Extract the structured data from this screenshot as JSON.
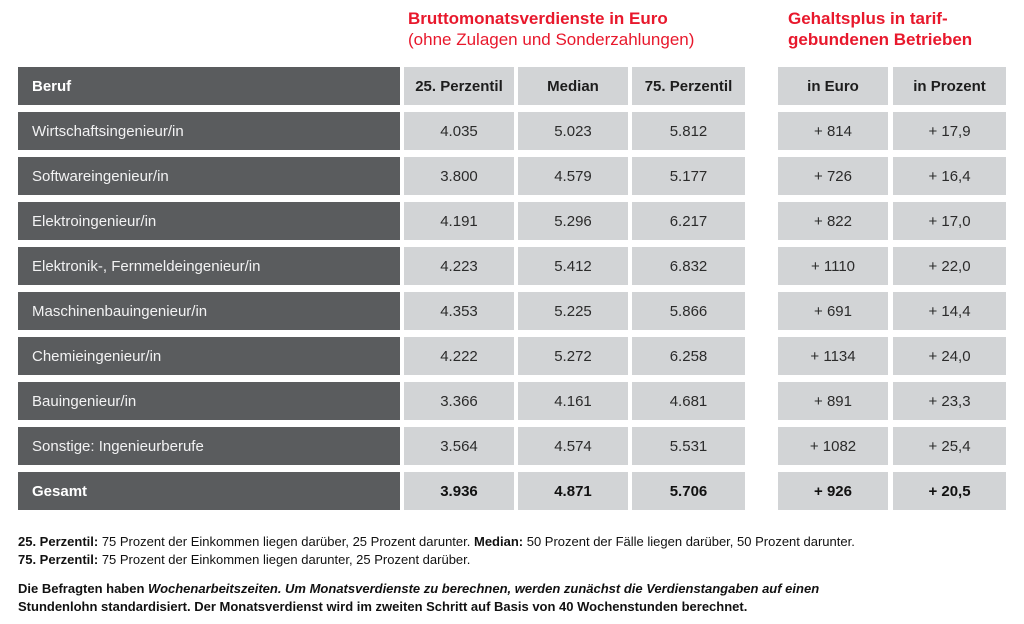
{
  "titles": {
    "earnings_line1": "Bruttomonatsverdienste in Euro",
    "earnings_line2": "(ohne Zulagen und Sonderzahlungen)",
    "bonus_line1": "Gehaltsplus in tarif-",
    "bonus_line2": "gebundenen Betrieben"
  },
  "table": {
    "beruf_header": "Beruf",
    "columns": [
      "25. Perzentil",
      "Median",
      "75. Perzentil",
      "in Euro",
      "in Prozent"
    ],
    "rows": [
      {
        "beruf": "Wirtschaftsingenieur/in",
        "p25": "4.035",
        "median": "5.023",
        "p75": "5.812",
        "euro": "+ 814",
        "prozent": "+ 17,9",
        "total": false
      },
      {
        "beruf": "Softwareingenieur/in",
        "p25": "3.800",
        "median": "4.579",
        "p75": "5.177",
        "euro": "+ 726",
        "prozent": "+ 16,4",
        "total": false
      },
      {
        "beruf": "Elektroingenieur/in",
        "p25": "4.191",
        "median": "5.296",
        "p75": "6.217",
        "euro": "+ 822",
        "prozent": "+ 17,0",
        "total": false
      },
      {
        "beruf": "Elektronik-, Fernmeldeingenieur/in",
        "p25": "4.223",
        "median": "5.412",
        "p75": "6.832",
        "euro": "+ 1110",
        "prozent": "+ 22,0",
        "total": false
      },
      {
        "beruf": "Maschinenbauingenieur/in",
        "p25": "4.353",
        "median": "5.225",
        "p75": "5.866",
        "euro": "+ 691",
        "prozent": "+ 14,4",
        "total": false
      },
      {
        "beruf": "Chemieingenieur/in",
        "p25": "4.222",
        "median": "5.272",
        "p75": "6.258",
        "euro": "+ 1134",
        "prozent": "+ 24,0",
        "total": false
      },
      {
        "beruf": "Bauingenieur/in",
        "p25": "3.366",
        "median": "4.161",
        "p75": "4.681",
        "euro": "+ 891",
        "prozent": "+ 23,3",
        "total": false
      },
      {
        "beruf": "Sonstige: Ingenieurberufe",
        "p25": "3.564",
        "median": "4.574",
        "p75": "5.531",
        "euro": "+ 1082",
        "prozent": "+ 25,4",
        "total": false
      },
      {
        "beruf": "Gesamt",
        "p25": "3.936",
        "median": "4.871",
        "p75": "5.706",
        "euro": "+ 926",
        "prozent": "+ 20,5",
        "total": true
      }
    ]
  },
  "footnotes": {
    "def1": [
      {
        "t": "25. Perzentil:",
        "b": true
      },
      {
        "t": " 75 Prozent der Einkommen liegen darüber, 25 Prozent darunter. ",
        "b": false
      },
      {
        "t": "Median:",
        "b": true
      },
      {
        "t": " 50 Prozent der Fälle liegen darüber, 50 Prozent darunter.",
        "b": false
      }
    ],
    "def2": [
      {
        "t": "75. Perzentil:",
        "b": true
      },
      {
        "t": " 75 Prozent der Einkommen liegen darunter, 25 Prozent darüber.",
        "b": false
      }
    ],
    "method": [
      {
        "t": "Die Befragten haben ",
        "b": true
      },
      {
        "t": "Wochenarbeitszeiten. Um Monatsverdienste zu berechnen, werden zunächst die Verdienstangaben auf einen",
        "b": true,
        "i": true,
        "br": true
      },
      {
        "t": "Stundenlohn standardisiert. Der Monatsverdienst wird im zweiten Schritt auf Basis von 40 Wochenstunden berechnet.",
        "b": true
      }
    ]
  },
  "colors": {
    "accent_red": "#e8182c",
    "dark_gray": "#5a5c5e",
    "light_gray": "#d2d4d6"
  },
  "chart_data": {
    "type": "table",
    "title": "Bruttomonatsverdienste in Euro (ohne Zulagen und Sonderzahlungen) und Gehaltsplus in tarifgebundenen Betrieben",
    "columns": [
      "Beruf",
      "25. Perzentil (Euro)",
      "Median (Euro)",
      "75. Perzentil (Euro)",
      "Gehaltsplus in Euro",
      "Gehaltsplus in Prozent"
    ],
    "rows": [
      [
        "Wirtschaftsingenieur/in",
        4035,
        5023,
        5812,
        814,
        17.9
      ],
      [
        "Softwareingenieur/in",
        3800,
        4579,
        5177,
        726,
        16.4
      ],
      [
        "Elektroingenieur/in",
        4191,
        5296,
        6217,
        822,
        17.0
      ],
      [
        "Elektronik-, Fernmeldeingenieur/in",
        4223,
        5412,
        6832,
        1110,
        22.0
      ],
      [
        "Maschinenbauingenieur/in",
        4353,
        5225,
        5866,
        691,
        14.4
      ],
      [
        "Chemieingenieur/in",
        4222,
        5272,
        6258,
        1134,
        24.0
      ],
      [
        "Bauingenieur/in",
        3366,
        4161,
        4681,
        891,
        23.3
      ],
      [
        "Sonstige: Ingenieurberufe",
        3564,
        4574,
        5531,
        1082,
        25.4
      ],
      [
        "Gesamt",
        3936,
        4871,
        5706,
        926,
        20.5
      ]
    ]
  }
}
